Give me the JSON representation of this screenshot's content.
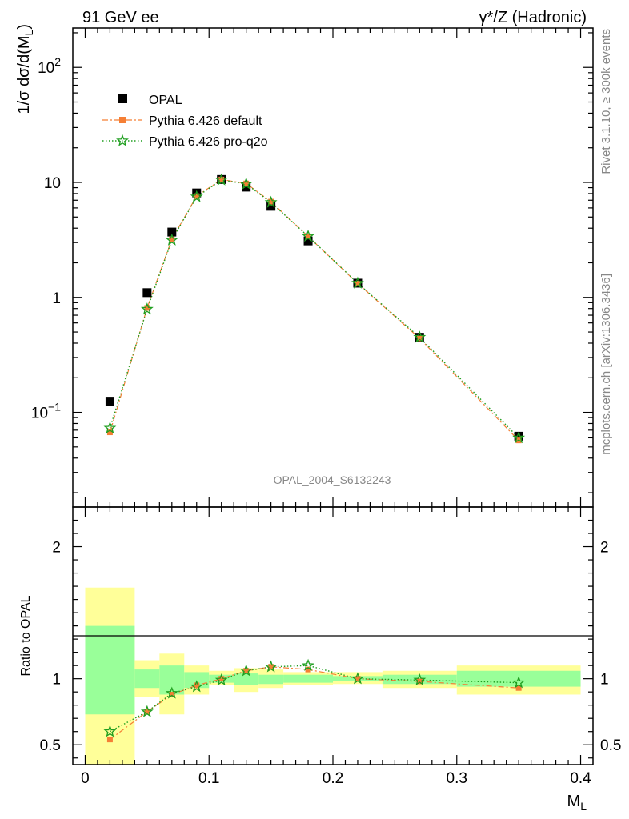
{
  "header": {
    "left": "91 GeV ee",
    "right": "γ*/Z (Hadronic)"
  },
  "side_labels": {
    "top": "Rivet 3.1.10, ≥ 300k events",
    "bottom": "mcplots.cern.ch [arXiv:1306.3436]"
  },
  "watermark": "OPAL_2004_S6132243",
  "chart_data": [
    {
      "type": "scatter",
      "panel": "main",
      "ylabel_main": "1/σ dσ/d(M",
      "ylabel_sub": "L",
      "ylabel_close": ")",
      "yscale": "log",
      "ylim": [
        0.015,
        220
      ],
      "xlim": [
        -0.01,
        0.41
      ],
      "yticks": [
        {
          "v": 0.1,
          "base": "10",
          "exp": "−1"
        },
        {
          "v": 1,
          "base": "1",
          "exp": ""
        },
        {
          "v": 10,
          "base": "10",
          "exp": ""
        },
        {
          "v": 100,
          "base": "10",
          "exp": "2"
        }
      ],
      "legend_position": "top-left",
      "series": [
        {
          "name": "OPAL",
          "color": "#000000",
          "marker": "square",
          "x": [
            0.02,
            0.05,
            0.07,
            0.09,
            0.11,
            0.13,
            0.15,
            0.18,
            0.22,
            0.27,
            0.35
          ],
          "y": [
            0.125,
            1.1,
            3.7,
            8.1,
            10.6,
            9.1,
            6.2,
            3.1,
            1.33,
            0.45,
            0.062
          ]
        },
        {
          "name": "Pythia 6.426 default",
          "color": "#f57f35",
          "marker": "filled-square",
          "line": "dashdot",
          "x": [
            0.02,
            0.05,
            0.07,
            0.09,
            0.11,
            0.13,
            0.15,
            0.18,
            0.22,
            0.27,
            0.35
          ],
          "y": [
            0.067,
            0.81,
            3.2,
            7.6,
            10.6,
            9.8,
            6.8,
            3.4,
            1.32,
            0.44,
            0.057
          ]
        },
        {
          "name": "Pythia 6.426 pro-q2o",
          "color": "#1e9e1e",
          "marker": "star",
          "line": "dotted",
          "x": [
            0.02,
            0.05,
            0.07,
            0.09,
            0.11,
            0.13,
            0.15,
            0.18,
            0.22,
            0.27,
            0.35
          ],
          "y": [
            0.073,
            0.79,
            3.15,
            7.5,
            10.5,
            9.7,
            6.7,
            3.4,
            1.33,
            0.45,
            0.06
          ]
        }
      ]
    },
    {
      "type": "line",
      "panel": "ratio",
      "ylabel": "Ratio to OPAL",
      "xlabel_main": "M",
      "xlabel_sub": "L",
      "ylim": [
        0.35,
        2.3
      ],
      "xlim": [
        -0.01,
        0.41
      ],
      "xticks": [
        {
          "v": 0,
          "label": "0"
        },
        {
          "v": 0.1,
          "label": "0.1"
        },
        {
          "v": 0.2,
          "label": "0.2"
        },
        {
          "v": 0.3,
          "label": "0.3"
        },
        {
          "v": 0.4,
          "label": "0.4"
        }
      ],
      "yticks": [
        {
          "v": 0.5,
          "label": "0.5"
        },
        {
          "v": 1,
          "label": "1"
        },
        {
          "v": 2,
          "label": "2"
        }
      ],
      "bands": [
        {
          "x0": 0.0,
          "x1": 0.04,
          "y_lo": 0.0,
          "y_hi": 1.69,
          "g_lo": 0.73,
          "g_hi": 1.4
        },
        {
          "x0": 0.04,
          "x1": 0.06,
          "y_lo": 0.86,
          "y_hi": 1.14,
          "g_lo": 0.93,
          "g_hi": 1.07
        },
        {
          "x0": 0.06,
          "x1": 0.08,
          "y_lo": 0.73,
          "y_hi": 1.19,
          "g_lo": 0.88,
          "g_hi": 1.1
        },
        {
          "x0": 0.08,
          "x1": 0.1,
          "y_lo": 0.88,
          "y_hi": 1.1,
          "g_lo": 0.93,
          "g_hi": 1.05
        },
        {
          "x0": 0.1,
          "x1": 0.12,
          "y_lo": 0.95,
          "y_hi": 1.06,
          "g_lo": 0.97,
          "g_hi": 1.03
        },
        {
          "x0": 0.12,
          "x1": 0.14,
          "y_lo": 0.9,
          "y_hi": 1.08,
          "g_lo": 0.95,
          "g_hi": 1.04
        },
        {
          "x0": 0.14,
          "x1": 0.16,
          "y_lo": 0.93,
          "y_hi": 1.07,
          "g_lo": 0.96,
          "g_hi": 1.03
        },
        {
          "x0": 0.16,
          "x1": 0.2,
          "y_lo": 0.95,
          "y_hi": 1.05,
          "g_lo": 0.97,
          "g_hi": 1.03
        },
        {
          "x0": 0.2,
          "x1": 0.24,
          "y_lo": 0.96,
          "y_hi": 1.05,
          "g_lo": 0.98,
          "g_hi": 1.02
        },
        {
          "x0": 0.24,
          "x1": 0.3,
          "y_lo": 0.93,
          "y_hi": 1.06,
          "g_lo": 0.96,
          "g_hi": 1.03
        },
        {
          "x0": 0.3,
          "x1": 0.4,
          "y_lo": 0.88,
          "y_hi": 1.1,
          "g_lo": 0.94,
          "g_hi": 1.06
        }
      ],
      "series": [
        {
          "name": "Pythia 6.426 default",
          "color": "#f57f35",
          "marker": "filled-square",
          "line": "dashdot",
          "x": [
            0.02,
            0.05,
            0.07,
            0.09,
            0.11,
            0.13,
            0.15,
            0.18,
            0.22,
            0.27,
            0.35
          ],
          "y": [
            0.54,
            0.75,
            0.88,
            0.95,
            1.0,
            1.06,
            1.09,
            1.07,
            1.0,
            0.98,
            0.93
          ]
        },
        {
          "name": "Pythia 6.426 pro-q2o",
          "color": "#1e9e1e",
          "marker": "star",
          "line": "dotted",
          "x": [
            0.02,
            0.05,
            0.07,
            0.09,
            0.11,
            0.13,
            0.15,
            0.18,
            0.22,
            0.27,
            0.35
          ],
          "y": [
            0.6,
            0.75,
            0.89,
            0.94,
            0.99,
            1.06,
            1.09,
            1.1,
            1.0,
            0.99,
            0.97
          ]
        }
      ]
    }
  ]
}
